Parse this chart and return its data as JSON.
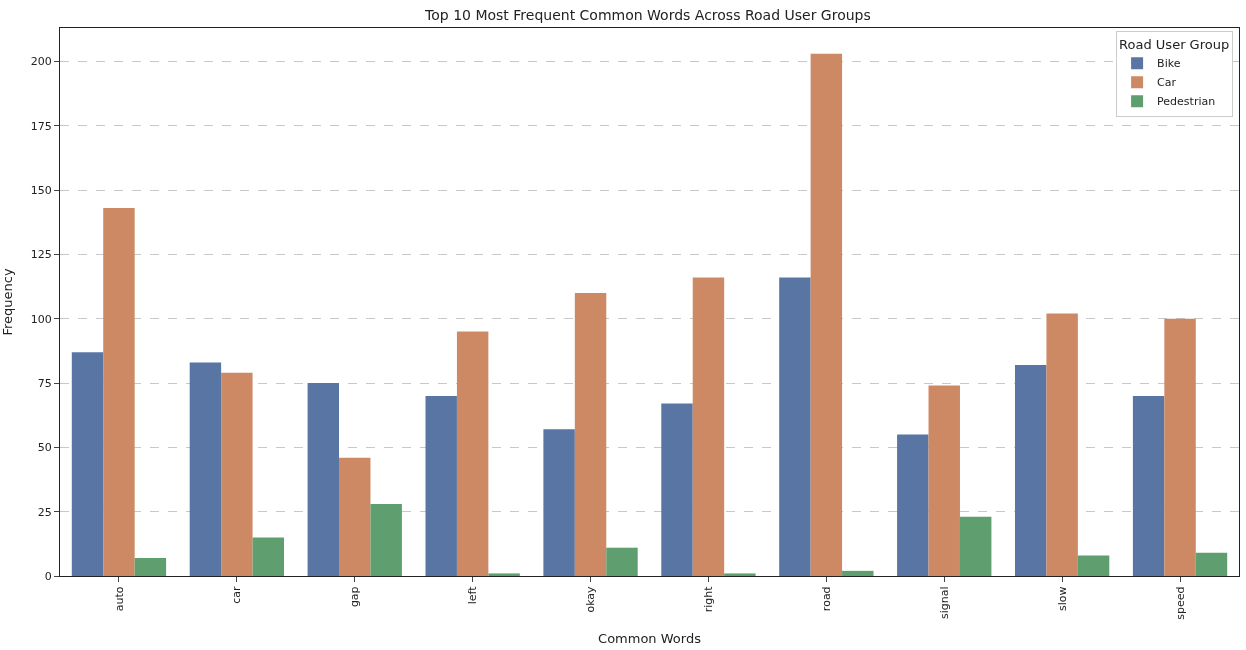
{
  "chart_data": {
    "type": "bar",
    "title": "Top 10 Most Frequent Common Words Across Road User Groups",
    "xlabel": "Common Words",
    "ylabel": "Frequency",
    "legend_title": "Road User Group",
    "categories": [
      "auto",
      "car",
      "gap",
      "left",
      "okay",
      "right",
      "road",
      "signal",
      "slow",
      "speed"
    ],
    "series": [
      {
        "name": "Bike",
        "color": "#5875a4",
        "values": [
          87,
          83,
          75,
          70,
          57,
          67,
          116,
          55,
          82,
          70
        ]
      },
      {
        "name": "Car",
        "color": "#cc8963",
        "values": [
          143,
          79,
          46,
          95,
          110,
          116,
          203,
          74,
          102,
          100
        ]
      },
      {
        "name": "Pedestrian",
        "color": "#5f9e6e",
        "values": [
          7,
          15,
          28,
          1,
          11,
          1,
          2,
          23,
          8,
          9
        ]
      }
    ],
    "ylim": [
      0,
      213
    ],
    "yticks": [
      0,
      25,
      50,
      75,
      100,
      125,
      150,
      175,
      200
    ],
    "grid": "y",
    "legend": "top right"
  }
}
